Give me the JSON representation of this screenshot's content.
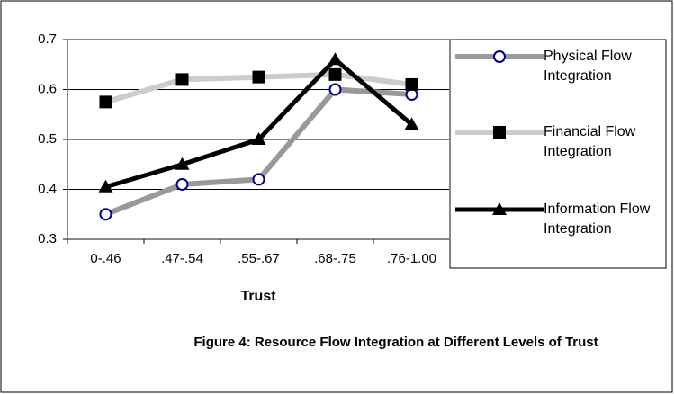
{
  "chart_data": {
    "type": "line",
    "x_label": "Trust",
    "caption": "Figure 4: Resource Flow Integration at Different Levels of Trust",
    "categories": [
      "0-.46",
      ".47-.54",
      ".55-.67",
      ".68-.75",
      ".76-1.00"
    ],
    "series": [
      {
        "name": "Physical Flow Integration",
        "color": "#999999",
        "marker": "circle",
        "values": [
          0.35,
          0.41,
          0.42,
          0.6,
          0.59
        ]
      },
      {
        "name": "Financial Flow Integration",
        "color": "#cccccc",
        "marker": "square",
        "values": [
          0.575,
          0.62,
          0.625,
          0.63,
          0.61
        ]
      },
      {
        "name": "Information Flow Integration",
        "color": "#000000",
        "marker": "triangle",
        "values": [
          0.405,
          0.45,
          0.5,
          0.66,
          0.53
        ]
      }
    ],
    "ylim": [
      0.3,
      0.7
    ],
    "yticks": [
      0.3,
      0.4,
      0.5,
      0.6,
      0.7
    ],
    "grid": true
  }
}
